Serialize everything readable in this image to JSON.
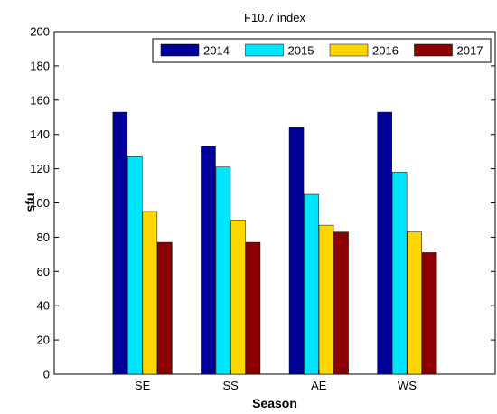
{
  "chart_data": {
    "type": "bar",
    "title": "F10.7 index",
    "xlabel": "Season",
    "ylabel": "sfu",
    "categories": [
      "SE",
      "SS",
      "AE",
      "WS"
    ],
    "ylim": [
      0,
      200
    ],
    "yticks": [
      0,
      20,
      40,
      60,
      80,
      100,
      120,
      140,
      160,
      180,
      200
    ],
    "grid": false,
    "legend_position": "top-right",
    "series": [
      {
        "name": "2014",
        "color": "#000099",
        "values": [
          153,
          133,
          144,
          153
        ]
      },
      {
        "name": "2015",
        "color": "#00E5FF",
        "values": [
          127,
          121,
          105,
          118
        ]
      },
      {
        "name": "2016",
        "color": "#FFD700",
        "values": [
          95,
          90,
          87,
          83
        ]
      },
      {
        "name": "2017",
        "color": "#8B0000",
        "values": [
          77,
          77,
          83,
          71
        ]
      }
    ]
  }
}
